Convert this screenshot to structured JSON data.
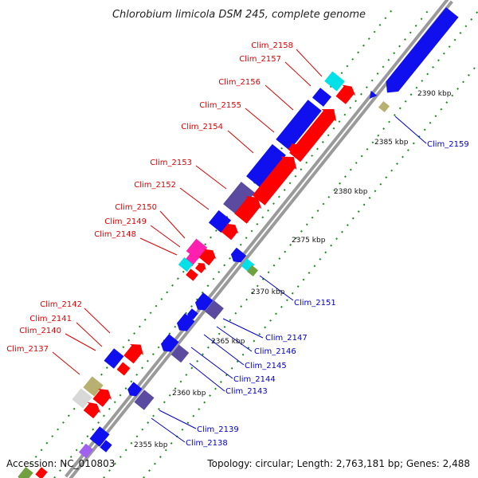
{
  "title": "Chlorobium limicola DSM 245, complete genome",
  "footer": {
    "accession": "Accession: NC_010803",
    "summary": "Topology: circular; Length: 2,763,181 bp; Genes: 2,488"
  },
  "colors": {
    "backbone": "#9a9a9a",
    "forward_label": "#dd0000",
    "reverse_label": "#0000cc",
    "tick_major": "#2a7a2a",
    "tick_minor": "#1a8a1a",
    "red_gene": "#ff0000",
    "blue_gene": "#1010ee",
    "slate_gene": "#5a4aa0",
    "cyan_gene": "#00e0e8",
    "magenta_gene": "#ff20b0",
    "olive_gene": "#b8b070",
    "gray_gene": "#d8d8d8",
    "green_gene": "#70a040"
  },
  "ticks": [
    {
      "label": "2355 kbp"
    },
    {
      "label": "2360 kbp"
    },
    {
      "label": "2365 kbp"
    },
    {
      "label": "2370 kbp"
    },
    {
      "label": "2375 kbp"
    },
    {
      "label": "2380 kbp"
    },
    {
      "label": "2385 kbp"
    },
    {
      "label": "2390 kbp"
    }
  ],
  "forward_labels": [
    "Clim_2158",
    "Clim_2157",
    "Clim_2156",
    "Clim_2155",
    "Clim_2154",
    "Clim_2153",
    "Clim_2152",
    "Clim_2150",
    "Clim_2149",
    "Clim_2148",
    "Clim_2142",
    "Clim_2141",
    "Clim_2140",
    "Clim_2137"
  ],
  "reverse_labels": [
    "Clim_2159",
    "Clim_2151",
    "Clim_2147",
    "Clim_2146",
    "Clim_2145",
    "Clim_2144",
    "Clim_2143",
    "Clim_2139",
    "Clim_2138"
  ]
}
